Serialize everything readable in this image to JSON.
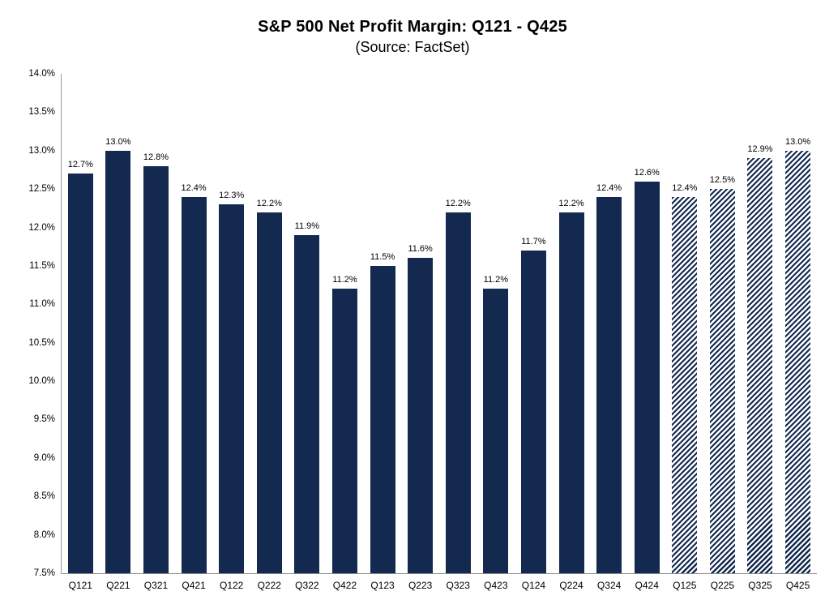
{
  "header": {
    "title": "S&P 500 Net Profit Margin: Q121 - Q425",
    "subtitle": "(Source: FactSet)"
  },
  "chart_data": {
    "type": "bar",
    "title": "S&P 500 Net Profit Margin: Q121 - Q425",
    "subtitle": "(Source: FactSet)",
    "categories": [
      "Q121",
      "Q221",
      "Q321",
      "Q421",
      "Q122",
      "Q222",
      "Q322",
      "Q422",
      "Q123",
      "Q223",
      "Q323",
      "Q423",
      "Q124",
      "Q224",
      "Q324",
      "Q424",
      "Q125",
      "Q225",
      "Q325",
      "Q425"
    ],
    "values": [
      12.7,
      13.0,
      12.8,
      12.4,
      12.3,
      12.2,
      11.9,
      11.2,
      11.5,
      11.6,
      12.2,
      11.2,
      11.7,
      12.2,
      12.4,
      12.6,
      12.4,
      12.5,
      12.9,
      13.0
    ],
    "value_labels": [
      "12.7%",
      "13.0%",
      "12.8%",
      "12.4%",
      "12.3%",
      "12.2%",
      "11.9%",
      "11.2%",
      "11.5%",
      "11.6%",
      "12.2%",
      "11.2%",
      "11.7%",
      "12.2%",
      "12.4%",
      "12.6%",
      "12.4%",
      "12.5%",
      "12.9%",
      "13.0%"
    ],
    "is_estimate": [
      false,
      false,
      false,
      false,
      false,
      false,
      false,
      false,
      false,
      false,
      false,
      false,
      false,
      false,
      false,
      false,
      true,
      true,
      true,
      true
    ],
    "estimate_style": "diagonal-hatch-forward-slash",
    "ylim": [
      7.5,
      14.0
    ],
    "ytick_step": 0.5,
    "ytick_labels_top_to_bottom": [
      "14.0%",
      "13.5%",
      "13.0%",
      "12.5%",
      "12.0%",
      "11.5%",
      "11.0%",
      "10.5%",
      "10.0%",
      "9.5%",
      "9.0%",
      "8.5%",
      "8.0%",
      "7.5%"
    ],
    "xlabel": "",
    "ylabel": "",
    "grid": false,
    "legend": "none",
    "bar_color": "#132950",
    "axis_line_color": "#9a9a9a",
    "label_color": "#000000",
    "background_color": "#ffffff"
  }
}
